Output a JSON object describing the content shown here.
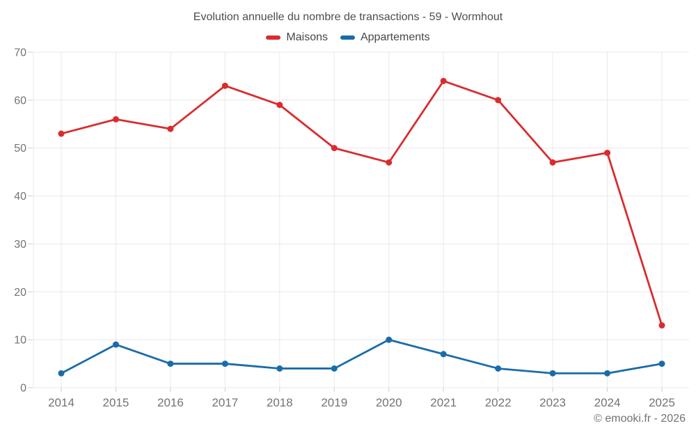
{
  "header": {
    "title": "Evolution annuelle du nombre de transactions - 59 - Wormhout"
  },
  "legend": {
    "items": [
      {
        "label": "Maisons",
        "color": "#d92c2e"
      },
      {
        "label": "Appartements",
        "color": "#1a6ca8"
      }
    ]
  },
  "footer": {
    "credit": "© emooki.fr - 2026"
  },
  "colors": {
    "background": "#ffffff",
    "grid": "#e8e8e8",
    "tick": "#cfcfcf",
    "axis_text": "#737373",
    "title_text": "#4d4d4d",
    "maisons": "#d92c2e",
    "appartements": "#1a6ca8"
  },
  "chart_data": {
    "type": "line",
    "title": "Evolution annuelle du nombre de transactions - 59 - Wormhout",
    "categories": [
      "2014",
      "2015",
      "2016",
      "2017",
      "2018",
      "2019",
      "2020",
      "2021",
      "2022",
      "2023",
      "2024",
      "2025"
    ],
    "series": [
      {
        "name": "Maisons",
        "color": "#d92c2e",
        "values": [
          53,
          56,
          54,
          63,
          59,
          50,
          47,
          64,
          60,
          47,
          49,
          13
        ]
      },
      {
        "name": "Appartements",
        "color": "#1a6ca8",
        "values": [
          3,
          9,
          5,
          5,
          4,
          4,
          10,
          7,
          4,
          3,
          3,
          5
        ]
      }
    ],
    "xlabel": "",
    "ylabel": "",
    "ylim": [
      0,
      70
    ],
    "ytick_step": 10,
    "grid": true,
    "legend_position": "top",
    "point_style": "circle"
  }
}
